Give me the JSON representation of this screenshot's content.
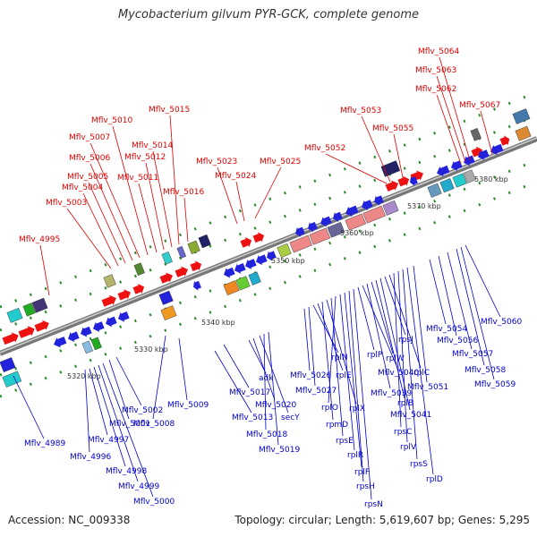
{
  "title": "Mycobacterium gilvum PYR-GCK, complete genome",
  "accession": "Accession: NC_009338",
  "topology": "Topology: circular; Length: 5,619,607 bp; Genes: 5,295",
  "ticks": [
    {
      "label": "5320 kbp",
      "pos_kbp": 5320
    },
    {
      "label": "5330 kbp",
      "pos_kbp": 5330
    },
    {
      "label": "5340 kbp",
      "pos_kbp": 5340
    },
    {
      "label": "5350 kbp",
      "pos_kbp": 5350
    },
    {
      "label": "5360 kbp",
      "pos_kbp": 5360
    },
    {
      "label": "5370 kbp",
      "pos_kbp": 5370
    },
    {
      "label": "5380 kbp",
      "pos_kbp": 5380
    }
  ],
  "colors": {
    "upper_labels": "#dd0000",
    "lower_labels": "#0000cc",
    "backbone": "#999999",
    "dash": "#2a8a2a"
  },
  "upper_genes": [
    "Mflv_4995",
    "Mflv_5003",
    "Mflv_5004",
    "Mflv_5005",
    "Mflv_5006",
    "Mflv_5007",
    "Mflv_5010",
    "Mflv_5011",
    "Mflv_5012",
    "Mflv_5014",
    "Mflv_5015",
    "Mflv_5016",
    "Mflv_5023",
    "Mflv_5024",
    "Mflv_5025",
    "Mflv_5052",
    "Mflv_5053",
    "Mflv_5055",
    "Mflv_5062",
    "Mflv_5063",
    "Mflv_5064",
    "Mflv_5067"
  ],
  "lower_genes": [
    "Mflv_4989",
    "Mflv_4996",
    "Mflv_4997",
    "Mflv_4998",
    "Mflv_4999",
    "Mflv_5000",
    "Mflv_5001",
    "Mflv_5002",
    "Mflv_5008",
    "Mflv_5009",
    "Mflv_5013",
    "Mflv_5017",
    "adk",
    "Mflv_5020",
    "secY",
    "Mflv_5018",
    "Mflv_5019",
    "Mflv_5026",
    "Mflv_5027",
    "rplN",
    "rplE",
    "rpmD",
    "rplX",
    "rpsE",
    "rplO",
    "rplR",
    "rplF",
    "rpsH",
    "rpsN",
    "rplP",
    "Mflv_5040",
    "Mflv_5039",
    "rplW",
    "rplB",
    "Mflv_5041",
    "rpsJ",
    "rplC",
    "rpsC",
    "rplV",
    "rpsS",
    "rplD",
    "Mflv_5051",
    "Mflv_5054",
    "Mflv_5056",
    "Mflv_5057",
    "Mflv_5058",
    "Mflv_5059",
    "Mflv_5060"
  ]
}
